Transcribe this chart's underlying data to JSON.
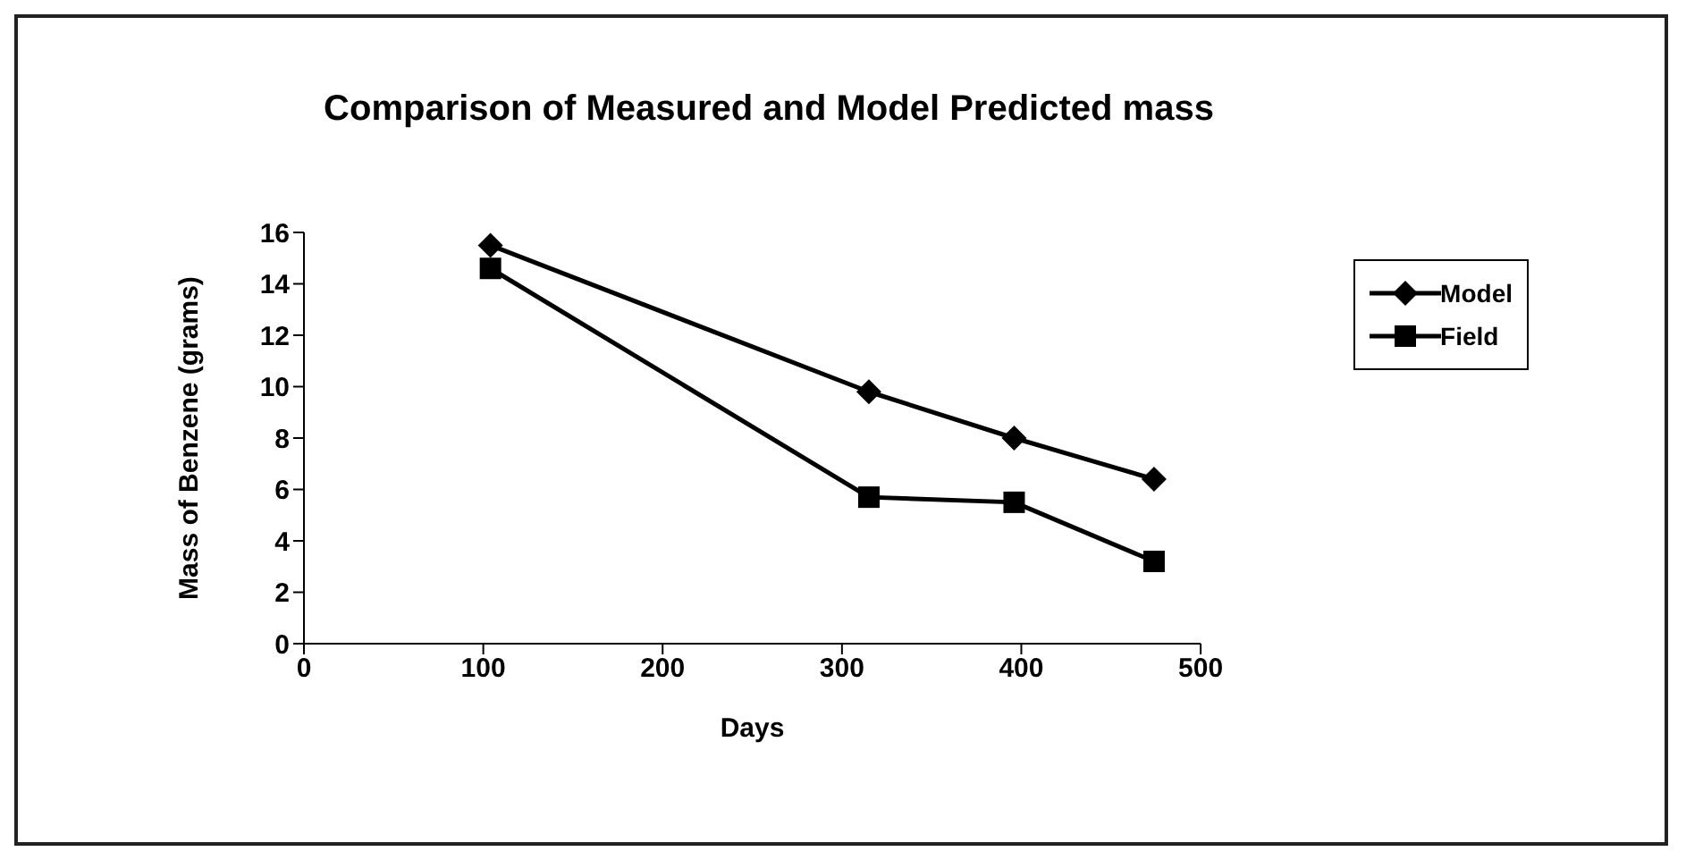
{
  "chart_data": {
    "type": "line",
    "title": "Comparison of Measured and Model Predicted mass",
    "xlabel": "Days",
    "ylabel": "Mass of Benzene (grams)",
    "series": [
      {
        "name": "Model",
        "color": "#000000",
        "marker": "diamond",
        "x": [
          104,
          315,
          396,
          474
        ],
        "values": [
          15.5,
          9.8,
          8.0,
          6.4
        ]
      },
      {
        "name": "Field",
        "color": "#000000",
        "marker": "square",
        "x": [
          104,
          315,
          396,
          474
        ],
        "values": [
          14.6,
          5.7,
          5.5,
          3.2
        ]
      }
    ],
    "xlim": [
      0,
      500
    ],
    "xticks": [
      0,
      100,
      200,
      300,
      400,
      500
    ],
    "ylim": [
      0,
      16
    ],
    "yticks": [
      0,
      2,
      4,
      6,
      8,
      10,
      12,
      14,
      16
    ],
    "grid": false,
    "legend": "right"
  }
}
